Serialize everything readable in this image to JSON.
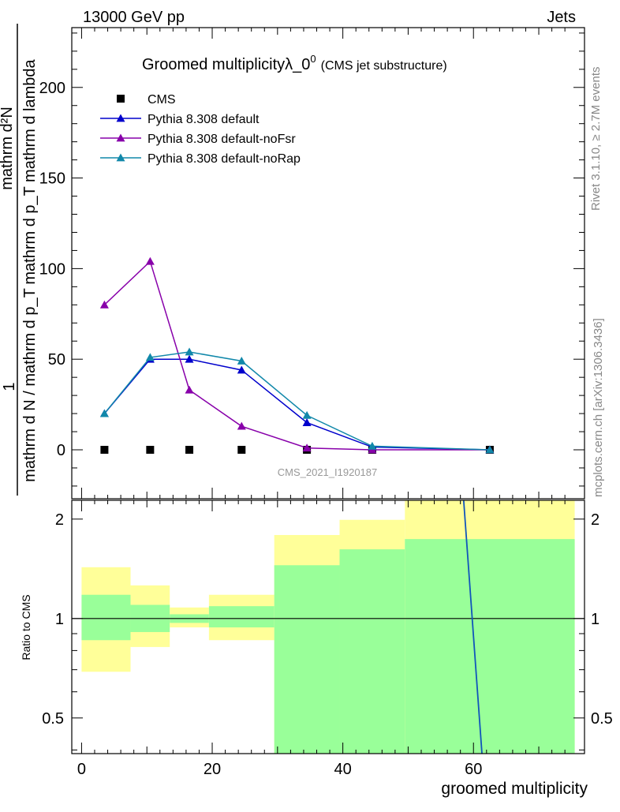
{
  "header": {
    "energy": "13000 GeV pp",
    "category": "Jets",
    "side_rivet": "Rivet 3.1.10, ≥ 2.7M events",
    "side_site": "mcplots.cern.ch [arXiv:1306.3436]",
    "analysis_id": "CMS_2021_I1920187"
  },
  "chart_data": {
    "type": "line",
    "title": "Groomed multiplicityλ_0",
    "title_superscript": "0",
    "subtitle": "(CMS jet substructure)",
    "xlabel": "groomed multiplicity",
    "ylabel_numerator": "mathrm d²N",
    "ylabel_prefix": "1",
    "ylabel_fraction_line1": "mathrm d p_T mathrm d lambda",
    "ylabel_denominator": "mathrm d N / mathrm d p_T",
    "ratio_ylabel": "Ratio to CMS",
    "xlim": [
      -1.5,
      77
    ],
    "ylim": [
      -27,
      233
    ],
    "ratio_ylim": [
      0.39,
      2.28
    ],
    "x_ticks": [
      0,
      20,
      40,
      60
    ],
    "y_ticks": [
      0,
      50,
      100,
      150,
      200
    ],
    "ratio_ticks": [
      0.5,
      1,
      2
    ],
    "legend_position": "top-left",
    "series": [
      {
        "name": "CMS",
        "color": "#000000",
        "marker": "square",
        "x": [
          3.5,
          10.5,
          16.5,
          24.5,
          34.5,
          44.5,
          62.5
        ],
        "y": [
          0,
          0,
          0,
          0,
          0,
          0,
          0
        ]
      },
      {
        "name": "Pythia 8.308 default",
        "color": "#0000cc",
        "marker": "triangle",
        "x": [
          3.5,
          10.5,
          16.5,
          24.5,
          34.5,
          44.5,
          62.5
        ],
        "y": [
          20,
          50,
          50,
          44,
          15,
          1.5,
          0
        ]
      },
      {
        "name": "Pythia 8.308 default-noFsr",
        "color": "#8800aa",
        "marker": "triangle",
        "x": [
          3.5,
          10.5,
          16.5,
          24.5,
          34.5,
          44.5,
          62.5
        ],
        "y": [
          80,
          104,
          33,
          13,
          1,
          0,
          0
        ]
      },
      {
        "name": "Pythia 8.308 default-noRap",
        "color": "#1188aa",
        "marker": "triangle",
        "x": [
          3.5,
          10.5,
          16.5,
          24.5,
          34.5,
          44.5,
          62.5
        ],
        "y": [
          20,
          51,
          54,
          49,
          19,
          2,
          0
        ]
      }
    ],
    "ratio_bands": [
      {
        "x0": 0,
        "x1": 7.5,
        "inner": [
          0.86,
          1.18
        ],
        "outer": [
          0.69,
          1.43
        ]
      },
      {
        "x0": 7.5,
        "x1": 13.5,
        "inner": [
          0.91,
          1.1
        ],
        "outer": [
          0.82,
          1.26
        ]
      },
      {
        "x0": 13.5,
        "x1": 19.5,
        "inner": [
          0.97,
          1.03
        ],
        "outer": [
          0.94,
          1.08
        ]
      },
      {
        "x0": 19.5,
        "x1": 29.5,
        "inner": [
          0.94,
          1.09
        ],
        "outer": [
          0.86,
          1.18
        ]
      },
      {
        "x0": 29.5,
        "x1": 39.5,
        "inner": [
          0.39,
          1.45
        ],
        "outer": [
          0.39,
          1.79
        ]
      },
      {
        "x0": 39.5,
        "x1": 49.5,
        "inner": [
          0.39,
          1.62
        ],
        "outer": [
          0.39,
          1.99
        ]
      },
      {
        "x0": 49.5,
        "x1": 75.5,
        "inner": [
          0.39,
          1.74
        ],
        "outer": [
          0.39,
          2.28
        ]
      }
    ],
    "ratio_line": {
      "color": "#1155bb",
      "points": [
        [
          58.5,
          2.28
        ],
        [
          61.3,
          0.39
        ]
      ]
    },
    "band_colors": {
      "inner": "#99ff99",
      "outer": "#ffff99"
    }
  }
}
